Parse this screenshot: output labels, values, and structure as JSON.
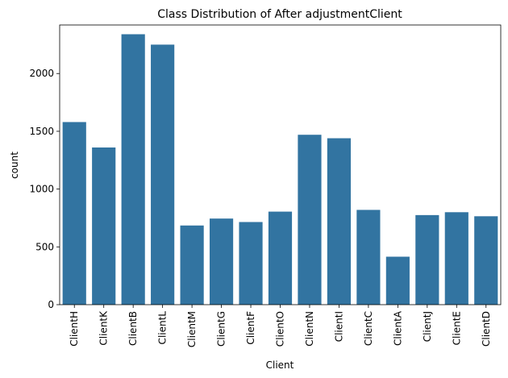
{
  "chart_data": {
    "type": "bar",
    "title": "Class Distribution of After adjustmentClient",
    "xlabel": "Client",
    "ylabel": "count",
    "categories": [
      "ClientH",
      "ClientK",
      "ClientB",
      "ClientL",
      "ClientM",
      "ClientG",
      "ClientF",
      "ClientO",
      "ClientN",
      "ClientI",
      "ClientC",
      "ClientA",
      "ClientJ",
      "ClientE",
      "ClientD"
    ],
    "values": [
      1580,
      1360,
      2340,
      2250,
      685,
      745,
      715,
      805,
      1470,
      1440,
      820,
      415,
      775,
      800,
      765
    ],
    "yticks": [
      0,
      500,
      1000,
      1500,
      2000
    ],
    "ylim": [
      0,
      2420
    ],
    "grid": false,
    "bar_color": "#3274a1"
  }
}
